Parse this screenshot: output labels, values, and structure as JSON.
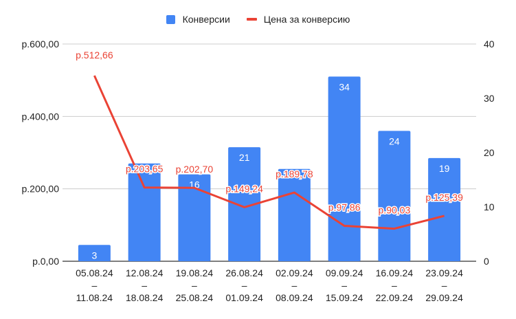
{
  "chart_data": {
    "type": "bar+line",
    "title": "",
    "legend": {
      "position": "top",
      "entries": [
        {
          "name": "Конверсии",
          "type": "bar",
          "color": "#4285f4"
        },
        {
          "name": "Цена за конверсию",
          "type": "line",
          "color": "#ea4335"
        }
      ]
    },
    "categories": [
      [
        "05.08.24",
        "–",
        "11.08.24"
      ],
      [
        "12.08.24",
        "–",
        "18.08.24"
      ],
      [
        "19.08.24",
        "–",
        "25.08.24"
      ],
      [
        "26.08.24",
        "–",
        "01.09.24"
      ],
      [
        "02.09.24",
        "–",
        "08.09.24"
      ],
      [
        "09.09.24",
        "–",
        "15.09.24"
      ],
      [
        "16.09.24",
        "–",
        "22.09.24"
      ],
      [
        "23.09.24",
        "–",
        "29.09.24"
      ]
    ],
    "series": [
      {
        "name": "Конверсии",
        "type": "bar",
        "axis": "right",
        "color": "#4285f4",
        "values": [
          3,
          18,
          16,
          21,
          17,
          34,
          24,
          19
        ],
        "labels": [
          "3",
          "",
          "16",
          "21",
          "",
          "34",
          "24",
          "19"
        ]
      },
      {
        "name": "Цена за конверсию",
        "type": "line",
        "axis": "left",
        "color": "#ea4335",
        "values": [
          512.66,
          203.65,
          202.7,
          149.24,
          189.78,
          97.86,
          90.03,
          125.39
        ],
        "labels": [
          "р.512,66",
          "р.203,65",
          "р.202,70",
          "р.149,24",
          "р.189,78",
          "р.97,86",
          "р.90,03",
          "р.125,39"
        ]
      }
    ],
    "left_axis": {
      "ylim": [
        0,
        600
      ],
      "ticks": [
        "р.0,00",
        "р.200,00",
        "р.400,00",
        "р.600,00"
      ]
    },
    "right_axis": {
      "ylim": [
        0,
        40
      ],
      "ticks": [
        "0",
        "10",
        "20",
        "30",
        "40"
      ]
    },
    "grid": true,
    "xlabel": "",
    "ylabel": ""
  }
}
